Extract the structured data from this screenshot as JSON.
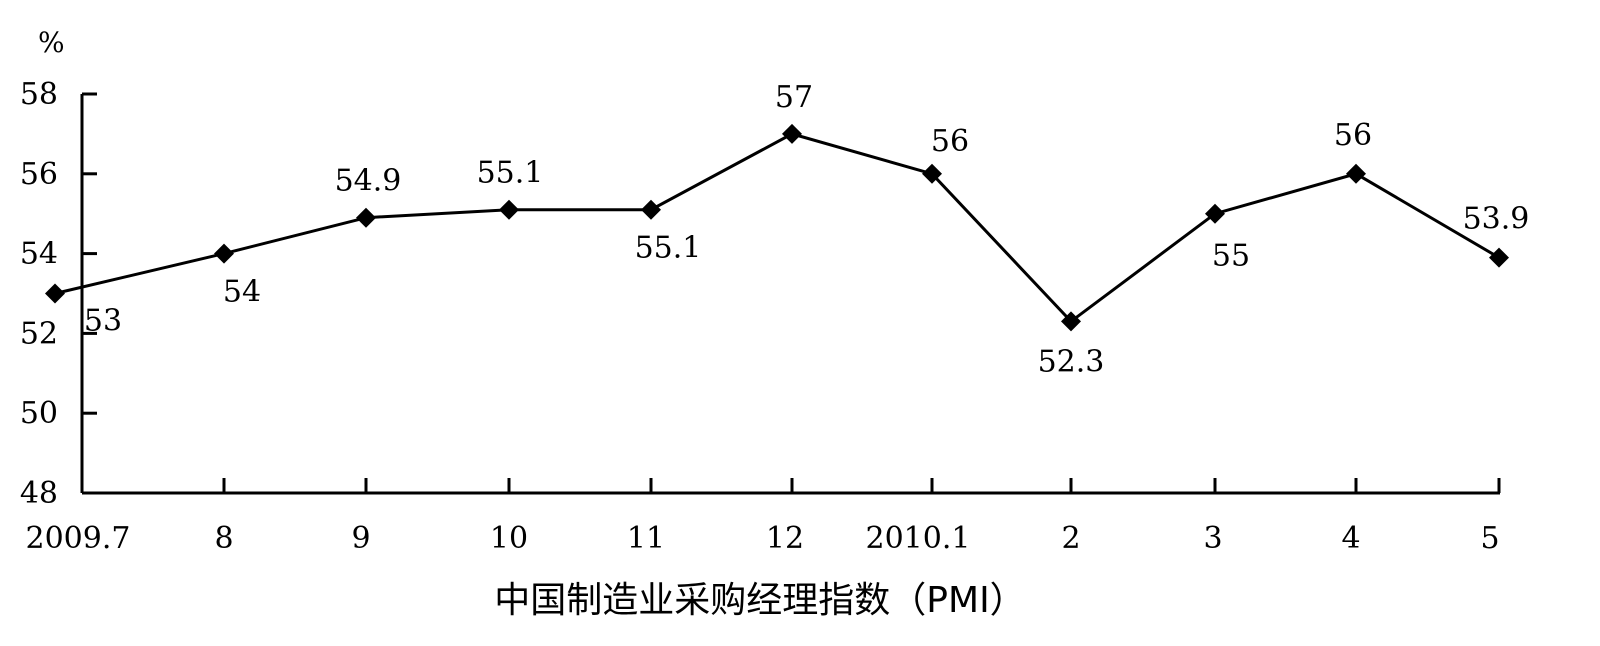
{
  "chart_data": {
    "type": "line",
    "xlabel": "中国制造业采购经理指数（PMI）",
    "ylabel": "%",
    "ylim": [
      48,
      58
    ],
    "yticks": [
      48,
      50,
      52,
      54,
      56,
      58
    ],
    "categories": [
      "2009.7",
      "8",
      "9",
      "10",
      "11",
      "12",
      "2010.1",
      "2",
      "3",
      "4",
      "5"
    ],
    "series": [
      {
        "values": [
          53,
          54,
          54.9,
          55.1,
          55.1,
          57,
          56,
          52.3,
          55,
          56,
          53.9
        ],
        "labels": [
          "53",
          "54",
          "54.9",
          "55.1",
          "55.1",
          "57",
          "56",
          "52.3",
          "55",
          "56",
          "53.9"
        ]
      }
    ],
    "grid": false,
    "legend": "none",
    "marker": "diamond",
    "color": "#000000"
  }
}
